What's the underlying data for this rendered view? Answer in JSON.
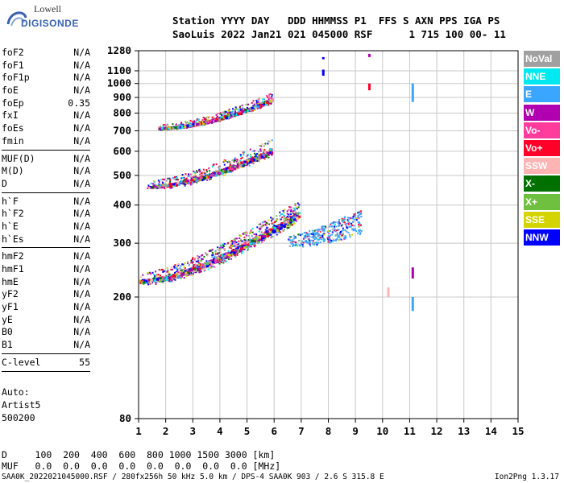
{
  "logo": {
    "line1": "Lowell",
    "line2": "DIGISONDE"
  },
  "header": {
    "line1": "Station YYYY DAY   DDD HHMMSS P1  FFS S AXN PPS IGA PS",
    "line2": "SaoLuis 2022 Jan21 021 045000 RSF      1 715 100 00- 11"
  },
  "params_groups": [
    [
      {
        "name": "foF2",
        "value": "N/A"
      },
      {
        "name": "foF1",
        "value": "N/A"
      },
      {
        "name": "foF1p",
        "value": "N/A"
      },
      {
        "name": "foE",
        "value": "N/A"
      },
      {
        "name": "foEp",
        "value": "0.35"
      },
      {
        "name": "fxI",
        "value": "N/A"
      },
      {
        "name": "foEs",
        "value": "N/A"
      },
      {
        "name": "fmin",
        "value": "N/A"
      }
    ],
    [
      {
        "name": "MUF(D)",
        "value": "N/A"
      },
      {
        "name": "M(D)",
        "value": "N/A"
      },
      {
        "name": "D",
        "value": "N/A"
      }
    ],
    [
      {
        "name": "h`F",
        "value": "N/A"
      },
      {
        "name": "h`F2",
        "value": "N/A"
      },
      {
        "name": "h`E",
        "value": "N/A"
      },
      {
        "name": "h`Es",
        "value": "N/A"
      }
    ],
    [
      {
        "name": "hmF2",
        "value": "N/A"
      },
      {
        "name": "hmF1",
        "value": "N/A"
      },
      {
        "name": "hmE",
        "value": "N/A"
      },
      {
        "name": "yF2",
        "value": "N/A"
      },
      {
        "name": "yF1",
        "value": "N/A"
      },
      {
        "name": "yE",
        "value": "N/A"
      },
      {
        "name": "B0",
        "value": "N/A"
      },
      {
        "name": "B1",
        "value": "N/A"
      }
    ],
    [
      {
        "name": "C-level",
        "value": "55"
      }
    ]
  ],
  "autoscale": {
    "line1": "Auto:",
    "line2": "Artist5",
    "line3": "500200"
  },
  "legend": [
    {
      "label": "NoVal",
      "color": "#a0a0a0"
    },
    {
      "label": "NNE",
      "color": "#00e8f0"
    },
    {
      "label": "E",
      "color": "#3aa6ff"
    },
    {
      "label": "W",
      "color": "#b000b0"
    },
    {
      "label": "Vo-",
      "color": "#ff3c9c"
    },
    {
      "label": "Vo+",
      "color": "#ff0028"
    },
    {
      "label": "SSW",
      "color": "#ffb4b4"
    },
    {
      "label": "X-",
      "color": "#007000"
    },
    {
      "label": "X+",
      "color": "#70c040"
    },
    {
      "label": "SSE",
      "color": "#d4d400"
    },
    {
      "label": "NNW",
      "color": "#0000ff"
    }
  ],
  "bottom_table": {
    "d_row": "D     100  200  400  600  800 1000 1500 3000 [km]",
    "muf_row": "MUF   0.0  0.0  0.0  0.0  0.0  0.0  0.0  0.0 [MHz]"
  },
  "footer": {
    "left": "SAA0K_2022021045000.RSF / 280fx256h 50 kHz 5.0 km / DPS-4 SAA0K 903 / 2.6 S 315.8 E",
    "right": "Ion2Png 1.3.17"
  },
  "chart_data": {
    "type": "scatter",
    "title": "",
    "xlabel": "",
    "ylabel": "",
    "xlim": [
      1,
      15
    ],
    "ylim": [
      80,
      1280
    ],
    "y_scale": "log",
    "x_ticks": [
      1,
      2,
      3,
      4,
      5,
      6,
      7,
      8,
      9,
      10,
      11,
      12,
      13,
      14,
      15
    ],
    "y_ticks": [
      80,
      200,
      300,
      400,
      500,
      600,
      700,
      800,
      900,
      1000,
      1100,
      1280
    ],
    "grid": true,
    "traces": [
      {
        "name": "F1 ordinary trace (1st hop)",
        "x_start": 1.0,
        "x_end": 6.9,
        "y_start": 225,
        "y_end": 370,
        "spread": 40
      },
      {
        "name": "F2 multi-hop trace (2nd hop)",
        "x_start": 1.3,
        "x_end": 5.9,
        "y_start": 460,
        "y_end": 600,
        "spread": 55
      },
      {
        "name": "3rd hop trace",
        "x_start": 1.7,
        "x_end": 5.9,
        "y_start": 715,
        "y_end": 880,
        "spread": 50
      },
      {
        "name": "spread F cloud",
        "x_start": 6.5,
        "x_end": 9.2,
        "y_start": 300,
        "y_end": 340,
        "spread": 45
      }
    ],
    "vertical_lines": [
      {
        "x": 7.8,
        "y_from": 1200,
        "y_to": 1220,
        "color": "#0000ff"
      },
      {
        "x": 7.8,
        "y_from": 1060,
        "y_to": 1110,
        "color": "#0000ff"
      },
      {
        "x": 9.5,
        "y_from": 1220,
        "y_to": 1250,
        "color": "#b000b0"
      },
      {
        "x": 9.5,
        "y_from": 950,
        "y_to": 1000,
        "color": "#ff0028"
      },
      {
        "x": 11.1,
        "y_from": 870,
        "y_to": 1000,
        "color": "#3aa6ff"
      },
      {
        "x": 11.1,
        "y_from": 180,
        "y_to": 200,
        "color": "#3aa6ff"
      },
      {
        "x": 11.1,
        "y_from": 230,
        "y_to": 250,
        "color": "#b000b0"
      },
      {
        "x": 10.2,
        "y_from": 200,
        "y_to": 215,
        "color": "#ffb4b4"
      }
    ]
  }
}
